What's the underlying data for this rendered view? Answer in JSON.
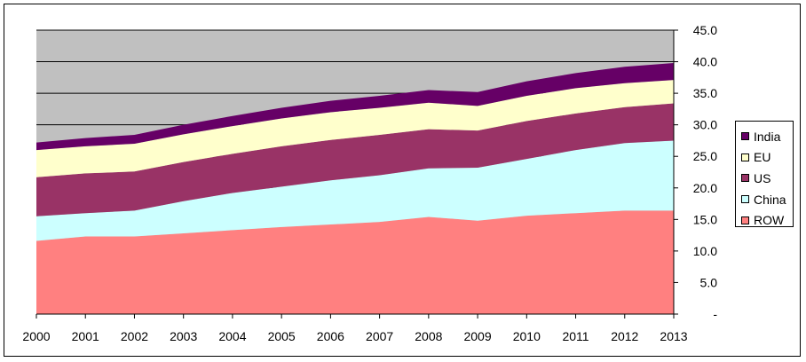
{
  "chart_data": {
    "type": "area",
    "stacked": true,
    "x": [
      2000,
      2001,
      2002,
      2003,
      2004,
      2005,
      2006,
      2007,
      2008,
      2009,
      2010,
      2011,
      2012,
      2013
    ],
    "x_tick_labels": [
      "2000",
      "2001",
      "2002",
      "2003",
      "2004",
      "2005",
      "2006",
      "2007",
      "2008",
      "2009",
      "2010",
      "2011",
      "2012",
      "2013"
    ],
    "ylim": [
      0,
      45
    ],
    "y_ticks": [
      0,
      5,
      10,
      15,
      20,
      25,
      30,
      35,
      40,
      45
    ],
    "y_tick_labels": [
      "-",
      "5.0",
      "10.0",
      "15.0",
      "20.0",
      "25.0",
      "30.0",
      "35.0",
      "40.0",
      "45.0"
    ],
    "y_axis_side": "right",
    "plot_background": "#C0C0C0",
    "gridlines": [
      20,
      25,
      30,
      35,
      40,
      45
    ],
    "legend_position": "right",
    "series": [
      {
        "name": "ROW",
        "color": "#FF8080",
        "values": [
          11.6,
          12.3,
          12.3,
          12.8,
          13.3,
          13.8,
          14.2,
          14.6,
          15.4,
          14.8,
          15.6,
          16.0,
          16.4,
          16.4
        ]
      },
      {
        "name": "China",
        "color": "#CCFFFF",
        "values": [
          3.9,
          3.7,
          4.1,
          5.1,
          5.9,
          6.4,
          7.0,
          7.4,
          7.7,
          8.4,
          9.0,
          10.0,
          10.7,
          11.1
        ]
      },
      {
        "name": "US",
        "color": "#993366",
        "values": [
          6.2,
          6.3,
          6.2,
          6.2,
          6.2,
          6.4,
          6.4,
          6.4,
          6.2,
          5.9,
          6.0,
          5.8,
          5.7,
          5.9
        ]
      },
      {
        "name": "EU",
        "color": "#FFFFCC",
        "values": [
          4.3,
          4.3,
          4.4,
          4.4,
          4.4,
          4.4,
          4.4,
          4.3,
          4.2,
          3.9,
          4.0,
          4.0,
          3.8,
          3.7
        ]
      },
      {
        "name": "India",
        "color": "#660066",
        "values": [
          1.2,
          1.3,
          1.4,
          1.5,
          1.6,
          1.7,
          1.8,
          1.9,
          2.0,
          2.2,
          2.3,
          2.4,
          2.6,
          2.7
        ]
      }
    ],
    "legend_order": [
      "India",
      "EU",
      "US",
      "China",
      "ROW"
    ]
  }
}
